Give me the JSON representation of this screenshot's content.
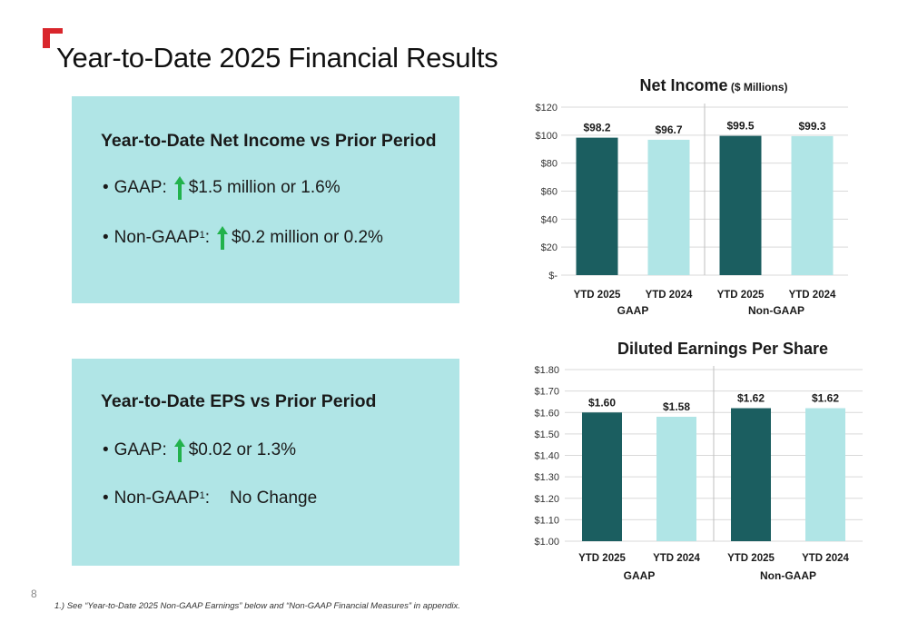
{
  "title": "Year-to-Date 2025 Financial Results",
  "net_income_panel": {
    "heading": "Year-to-Date Net Income vs Prior Period",
    "gaap_label": "GAAP:",
    "gaap_value": "$1.5 million or 1.6%",
    "nongaap_label": "Non-GAAP",
    "nongaap_sup": "1",
    "nongaap_colon": ":",
    "nongaap_value": "$0.2 million or 0.2%"
  },
  "eps_panel": {
    "heading": "Year-to-Date EPS vs Prior Period",
    "gaap_label": "GAAP:",
    "gaap_value": "$0.02 or 1.3%",
    "nongaap_label": "Non-GAAP",
    "nongaap_sup": "1",
    "nongaap_colon": ":",
    "nongaap_value": "No Change"
  },
  "colors": {
    "accent_red": "#d9262c",
    "dark_bar": "#1b5e60",
    "light_bar": "#b0e5e6",
    "panel_bg": "#b0e5e6",
    "up_arrow": "#22b24c"
  },
  "icons": {
    "trend": "up-arrow-icon"
  },
  "page_number": "8",
  "footnote": "1.) See “Year-to-Date 2025 Non-GAAP Earnings” below and “Non-GAAP Financial Measures” in appendix.",
  "chart_data": [
    {
      "type": "bar",
      "title": "Net Income",
      "subtitle": "($ Millions)",
      "categories": [
        "YTD 2025",
        "YTD 2024",
        "YTD 2025",
        "YTD 2024"
      ],
      "groups": [
        "GAAP",
        "Non-GAAP"
      ],
      "values": [
        98.2,
        96.7,
        99.5,
        99.3
      ],
      "data_labels": [
        "$98.2",
        "$96.7",
        "$99.5",
        "$99.3"
      ],
      "bar_colors": [
        "dark",
        "light",
        "dark",
        "light"
      ],
      "ylim": [
        0,
        120
      ],
      "yticks": [
        0,
        20,
        40,
        60,
        80,
        100,
        120
      ],
      "ytick_labels": [
        "$-",
        "$20",
        "$40",
        "$60",
        "$80",
        "$100",
        "$120"
      ],
      "grid": true
    },
    {
      "type": "bar",
      "title": "Diluted Earnings Per Share",
      "subtitle": "",
      "categories": [
        "YTD 2025",
        "YTD 2024",
        "YTD 2025",
        "YTD 2024"
      ],
      "groups": [
        "GAAP",
        "Non-GAAP"
      ],
      "values": [
        1.6,
        1.58,
        1.62,
        1.62
      ],
      "data_labels": [
        "$1.60",
        "$1.58",
        "$1.62",
        "$1.62"
      ],
      "bar_colors": [
        "dark",
        "light",
        "dark",
        "light"
      ],
      "ylim": [
        1.0,
        1.8
      ],
      "yticks": [
        1.0,
        1.1,
        1.2,
        1.3,
        1.4,
        1.5,
        1.6,
        1.7,
        1.8
      ],
      "ytick_labels": [
        "$1.00",
        "$1.10",
        "$1.20",
        "$1.30",
        "$1.40",
        "$1.50",
        "$1.60",
        "$1.70",
        "$1.80"
      ],
      "grid": true
    }
  ]
}
